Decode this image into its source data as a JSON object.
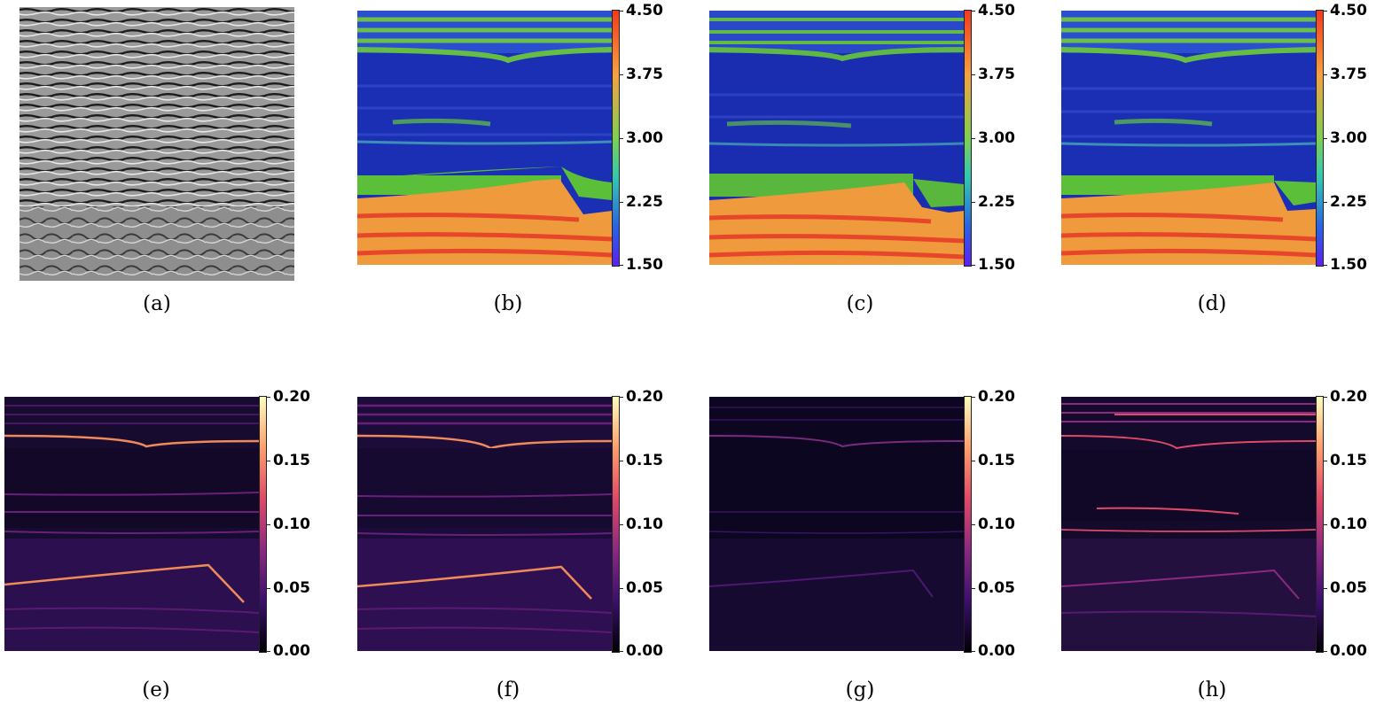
{
  "captions": {
    "a": "(a)",
    "b": "(b)",
    "c": "(c)",
    "d": "(d)",
    "e": "(e)",
    "f": "(f)",
    "g": "(g)",
    "h": "(h)"
  },
  "colorbar_top": {
    "ticks": [
      "4.50",
      "3.75",
      "3.00",
      "2.25",
      "1.50"
    ],
    "range": [
      1.5,
      4.5
    ],
    "colormap": [
      "#f23a1e",
      "#f5a142",
      "#7fcf54",
      "#33c9b0",
      "#2a62e3",
      "#5b22ee"
    ]
  },
  "colorbar_bottom": {
    "ticks": [
      "0.20",
      "0.15",
      "0.10",
      "0.05",
      "0.00"
    ],
    "range": [
      0.0,
      0.2
    ],
    "colormap": [
      "#fcfdbf",
      "#fd9f6c",
      "#de4968",
      "#8c2981",
      "#3b0f70",
      "#000004"
    ]
  },
  "colors": {
    "velocity_low": "#1b2fb5",
    "velocity_mid": "#5bbf3a",
    "velocity_high": "#ef9a3c",
    "velocity_peak": "#e7462a",
    "error_bg": "#170b30",
    "error_mid": "#6a1f7a",
    "error_high": "#f08a5a"
  }
}
